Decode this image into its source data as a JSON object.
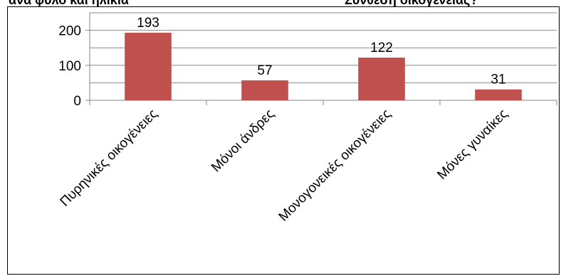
{
  "header": {
    "left_title_fragment": "ανά φύλο και ηλικία",
    "right_title_fragment": "Σύνθεση οικογένειας?"
  },
  "chart_data": {
    "type": "bar",
    "categories": [
      "Πυρηνικές οικογένειες",
      "Μόνοι άνδρες",
      "Μονογονεικές οικογένειες",
      "Μόνες γυναίκες"
    ],
    "values": [
      193,
      57,
      122,
      31
    ],
    "ylim": [
      0,
      250
    ],
    "yticks": [
      0,
      100,
      200
    ],
    "grid": true,
    "legend": "none",
    "colors": {
      "bar": "#c0504d",
      "grid": "#878787",
      "axis": "#878787"
    }
  }
}
